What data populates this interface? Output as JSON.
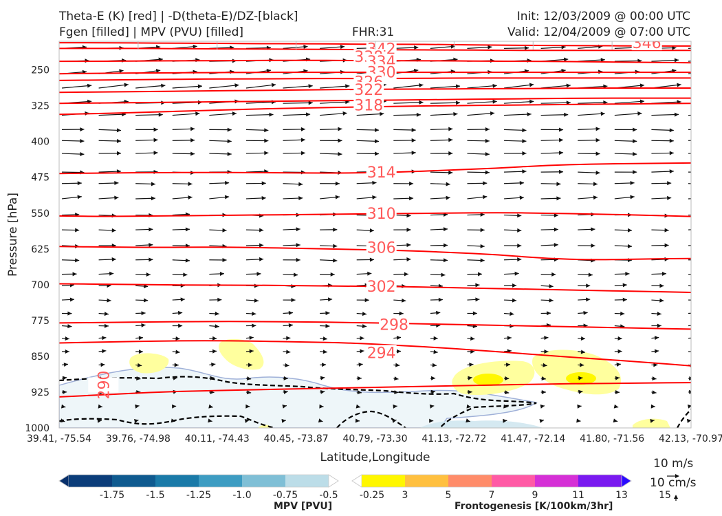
{
  "header": {
    "title_left_line1": "Theta-E (K) [red] | -D(theta-E)/DZ-[black]",
    "title_left_line2": "Fgen [filled] | MPV (PVU) [filled]",
    "title_center": "FHR:31",
    "title_right_line1": "Init: 12/03/2009 @ 00:00 UTC",
    "title_right_line2": "Valid: 12/04/2009 @ 07:00 UTC"
  },
  "chart_data": {
    "type": "cross-section",
    "xlabel": "Latitude,Longitude",
    "ylabel": "Pressure [hPa]",
    "x_ticks": [
      "39.41, -75.54",
      "39.76, -74.98",
      "40.11, -74.43",
      "40.45, -73.87",
      "40.79, -73.30",
      "41.13, -72.72",
      "41.47, -72.14",
      "41.80, -71.56",
      "42.13, -70.97"
    ],
    "y_ticks": [
      250,
      325,
      400,
      475,
      550,
      625,
      700,
      775,
      850,
      925,
      1000
    ],
    "ylim": [
      1000,
      190
    ],
    "theta_e_color": "#ff0000",
    "isentropes": [
      {
        "level": 290,
        "y": [
          935,
          930,
          925,
          922,
          920,
          918,
          916,
          914,
          912,
          910,
          908,
          907,
          906,
          905
        ]
      },
      {
        "level": 294,
        "y": [
          822,
          820,
          818,
          817,
          818,
          820,
          822,
          827,
          833,
          840,
          848,
          855,
          862,
          870
        ]
      },
      {
        "level": 298,
        "y": [
          780,
          779,
          778,
          777,
          777,
          778,
          779,
          781,
          783,
          785,
          787,
          789,
          791,
          793
        ]
      },
      {
        "level": 302,
        "y": [
          698,
          699,
          700,
          701,
          701,
          702,
          703,
          704,
          706,
          708,
          710,
          712,
          714,
          716
        ]
      },
      {
        "level": 306,
        "y": [
          620,
          621,
          622,
          621,
          622,
          624,
          626,
          628,
          632,
          637,
          645,
          648,
          646,
          645
        ]
      },
      {
        "level": 310,
        "y": [
          556,
          557,
          556,
          555,
          554,
          553,
          552,
          551,
          550,
          549,
          550,
          552,
          554,
          557
        ]
      },
      {
        "level": 314,
        "y": [
          467,
          466,
          465,
          465,
          465,
          466,
          466,
          464,
          460,
          456,
          450,
          447,
          446,
          445
        ]
      },
      {
        "level": 318,
        "y": [
          343,
          341,
          338,
          335,
          332,
          330,
          328,
          326,
          325,
          324,
          323,
          322,
          321,
          320
        ]
      },
      {
        "level": 322,
        "y": [
          320,
          319,
          318,
          317,
          316,
          315,
          314,
          313,
          312,
          311,
          310,
          309,
          309,
          309
        ]
      },
      {
        "level": 326,
        "y": [
          297,
          296,
          295,
          294,
          293,
          292,
          291,
          290,
          290,
          289,
          289,
          288,
          288,
          288
        ]
      },
      {
        "level": 330,
        "y": [
          272,
          271,
          270,
          269,
          269,
          268,
          268,
          268,
          267,
          267,
          267,
          267,
          267,
          267
        ]
      },
      {
        "level": 334,
        "y": [
          258,
          257,
          256,
          256,
          255,
          255,
          255,
          255,
          255,
          255,
          255,
          255,
          255,
          255
        ]
      },
      {
        "level": 338,
        "y": [
          232,
          232,
          231,
          231,
          230,
          230,
          230,
          231,
          231,
          232,
          232,
          233,
          234,
          235
        ]
      },
      {
        "level": 342,
        "y": [
          205,
          205,
          205,
          206,
          206,
          207,
          207,
          208,
          208,
          209,
          209,
          209,
          209,
          209
        ]
      },
      {
        "level": 346,
        "y": [
          193,
          193,
          194,
          194,
          195,
          195,
          196,
          196,
          197,
          198,
          199,
          199,
          200,
          200
        ]
      }
    ],
    "isentrope_labels": [
      {
        "level": "342",
        "pos": 0.51,
        "y": 205
      },
      {
        "level": "338",
        "pos": 0.49,
        "y": 222
      },
      {
        "level": "334",
        "pos": 0.51,
        "y": 232
      },
      {
        "level": "330",
        "pos": 0.51,
        "y": 254
      },
      {
        "level": "326",
        "pos": 0.49,
        "y": 274
      },
      {
        "level": "322",
        "pos": 0.49,
        "y": 291
      },
      {
        "level": "318",
        "pos": 0.49,
        "y": 323
      },
      {
        "level": "314",
        "pos": 0.51,
        "y": 464
      },
      {
        "level": "310",
        "pos": 0.51,
        "y": 550
      },
      {
        "level": "306",
        "pos": 0.51,
        "y": 622
      },
      {
        "level": "302",
        "pos": 0.51,
        "y": 703
      },
      {
        "level": "298",
        "pos": 0.53,
        "y": 783
      },
      {
        "level": "294",
        "pos": 0.51,
        "y": 842
      },
      {
        "level": "290",
        "pos": 0.07,
        "y": 910
      },
      {
        "level": "346",
        "pos": 0.93,
        "y": 193
      }
    ],
    "mpv_colorbar": {
      "label": "MPV [PVU]",
      "ticks": [
        "-1.75",
        "-1.5",
        "-1.25",
        "-1.0",
        "-0.75",
        "-0.5",
        "-0.25"
      ],
      "colors": [
        "#08306b",
        "#0b3d7a",
        "#0f5a8f",
        "#1a7aa8",
        "#3d9cc2",
        "#7fbfd6",
        "#bcdde8",
        "#ffffff"
      ]
    },
    "fgen_colorbar": {
      "label": "Frontogenesis [K/100km/3hr]",
      "ticks": [
        "3",
        "5",
        "7",
        "9",
        "11",
        "13",
        "15"
      ],
      "colors": [
        "#ffffff",
        "#fff700",
        "#ffc040",
        "#ff8c6a",
        "#ff5aa5",
        "#d530d6",
        "#7a1af0",
        "#2a0aff"
      ]
    },
    "wind_legend": {
      "u": "10 m/s",
      "w": "10 cm/s"
    }
  }
}
